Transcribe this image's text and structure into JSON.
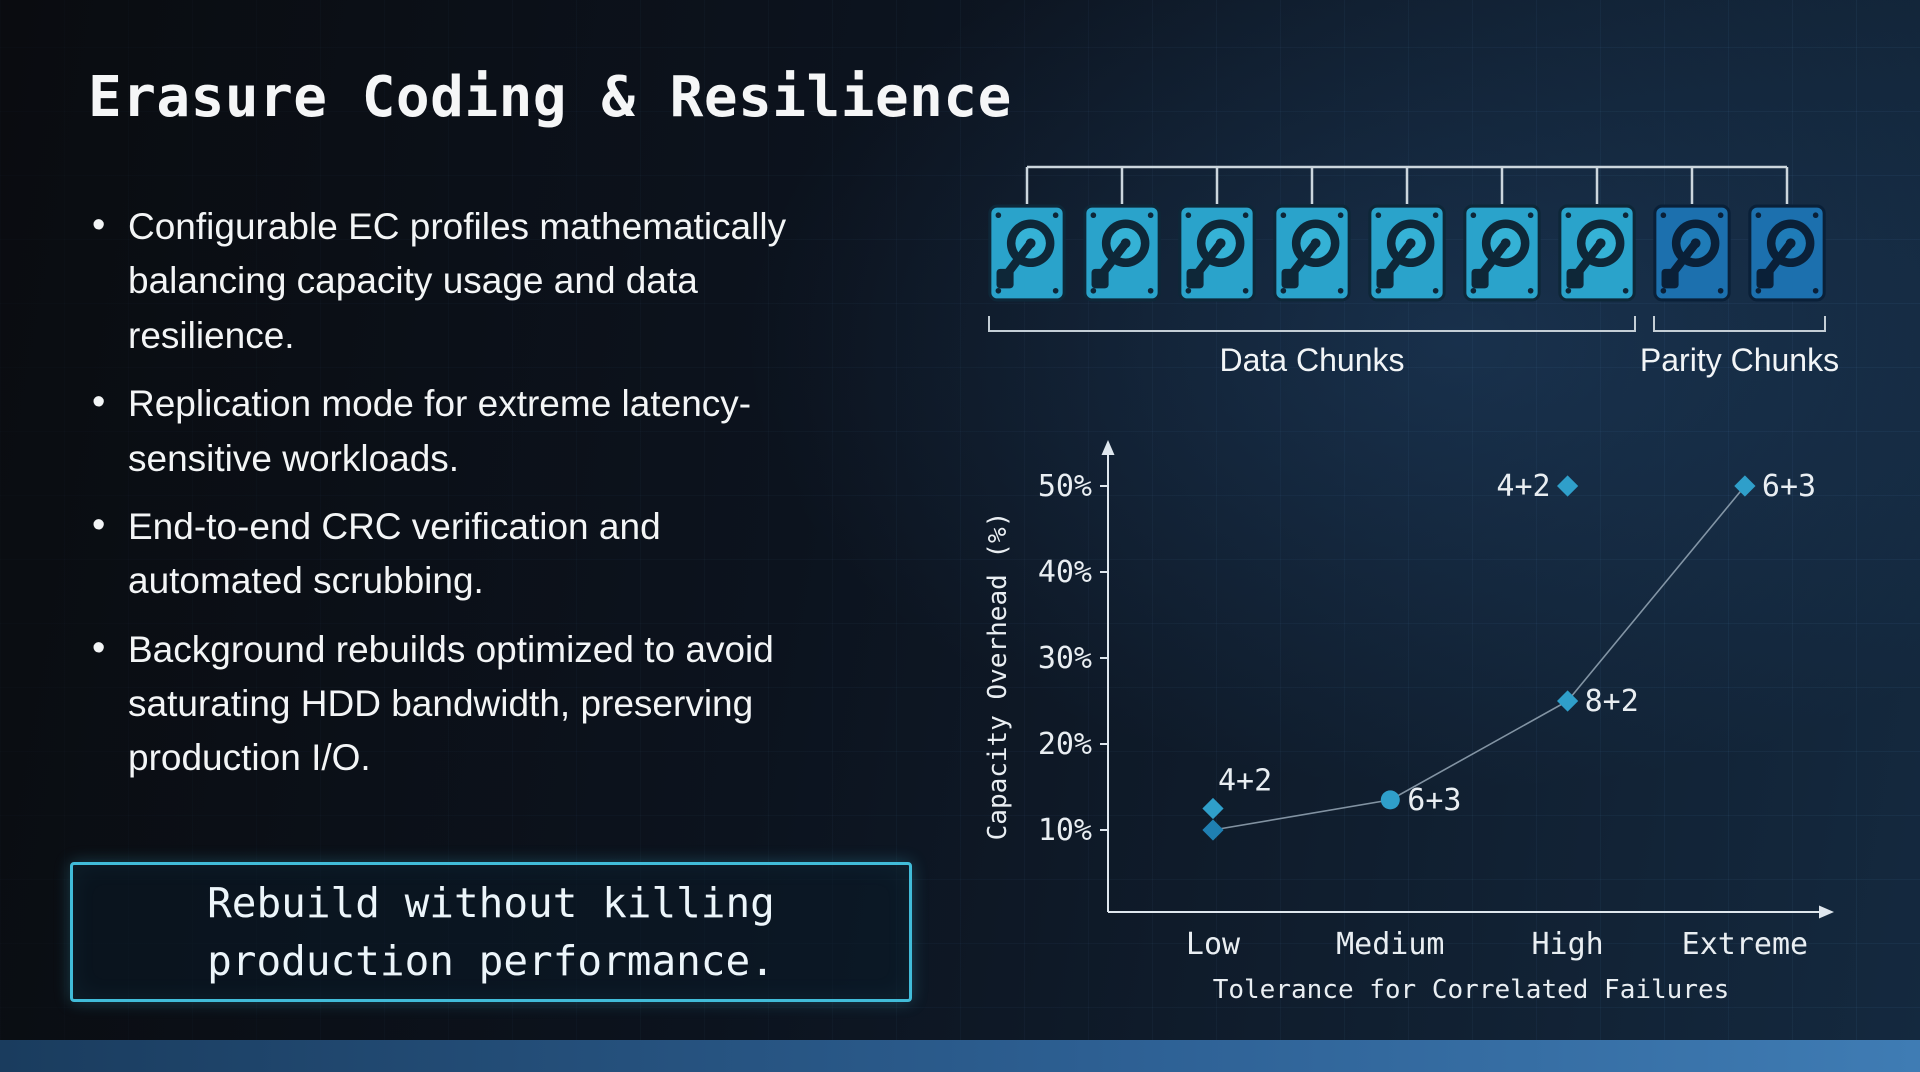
{
  "slide": {
    "title": "Erasure Coding & Resilience",
    "bullets": [
      "Configurable EC profiles mathematically balancing capacity usage and data resilience.",
      "Replication mode for extreme latency-sensitive workloads.",
      "End-to-end CRC verification and automated scrubbing.",
      "Background rebuilds optimized to avoid saturating HDD bandwidth, preserving production I/O."
    ],
    "callout": "Rebuild without killing\nproduction performance.",
    "accent_color": "#41bcd9"
  },
  "disk_diagram": {
    "data_count": 7,
    "parity_count": 2,
    "data_label": "Data Chunks",
    "parity_label": "Parity Chunks",
    "data_color": "#2aa3cb",
    "data_color_mid": "#35b2d6",
    "data_color_dark": "#0e2738",
    "parity_color": "#1c70ae",
    "parity_color_mid": "#1f7cb8",
    "parity_color_dark": "#0a2038",
    "connector_color": "#ccd6dd"
  },
  "chart_data": {
    "type": "scatter",
    "title": "",
    "xlabel": "Tolerance for Correlated Failures",
    "ylabel": "Capacity Overhead (%)",
    "categories": [
      "Low",
      "Medium",
      "High",
      "Extreme"
    ],
    "y_ticks": [
      10,
      20,
      30,
      40,
      50
    ],
    "y_tick_suffix": "%",
    "ylim": [
      0,
      57
    ],
    "legend": "none",
    "grid": false,
    "line_series": {
      "name": "overhead-vs-tolerance",
      "points": [
        {
          "x": "Low",
          "y": 10
        },
        {
          "x": "Medium",
          "y": 13.5
        },
        {
          "x": "High",
          "y": 25
        },
        {
          "x": "Extreme",
          "y": 50
        }
      ]
    },
    "points": [
      {
        "x": "Low",
        "y": 12.5,
        "label": "4+2",
        "marker": "diamond",
        "label_side": "above",
        "color": "#2f9fca"
      },
      {
        "x": "Low",
        "y": 10,
        "label": "",
        "marker": "diamond",
        "label_side": "none",
        "color": "#1f7fb2"
      },
      {
        "x": "Medium",
        "y": 13.5,
        "label": "6+3",
        "marker": "circle",
        "label_side": "right",
        "color": "#2f9fca"
      },
      {
        "x": "High",
        "y": 50,
        "label": "4+2",
        "marker": "diamond",
        "label_side": "left",
        "color": "#2f9fca"
      },
      {
        "x": "High",
        "y": 25,
        "label": "8+2",
        "marker": "diamond",
        "label_side": "right",
        "color": "#2f9fca"
      },
      {
        "x": "Extreme",
        "y": 50,
        "label": "6+3",
        "marker": "diamond",
        "label_side": "right",
        "color": "#2f9fca"
      }
    ],
    "axis_color": "#dfe7ee",
    "line_color": "#9fb0bf"
  }
}
